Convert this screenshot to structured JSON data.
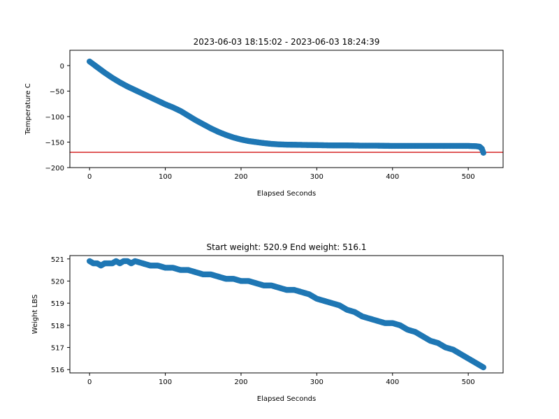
{
  "figure": {
    "background": "#ffffff"
  },
  "chart_data": [
    {
      "type": "scatter",
      "title": "2023-06-03 18:15:02 - 2023-06-03 18:24:39",
      "xlabel": "Elapsed Seconds",
      "ylabel": "Temperature C",
      "xlim": [
        -26,
        546
      ],
      "ylim": [
        -200,
        30
      ],
      "xticks": [
        0,
        100,
        200,
        300,
        400,
        500
      ],
      "xtick_labels": [
        "0",
        "100",
        "200",
        "300",
        "400",
        "500"
      ],
      "yticks": [
        -200,
        -150,
        -100,
        -50,
        0
      ],
      "ytick_labels": [
        "−200",
        "−150",
        "−100",
        "−50",
        "0"
      ],
      "grid": false,
      "marker_color": "#1f77b4",
      "reference_line": {
        "orientation": "horizontal",
        "y": -170,
        "color": "#d62728"
      },
      "series": [
        {
          "x": [
            0,
            10,
            20,
            30,
            40,
            50,
            60,
            70,
            80,
            90,
            100,
            110,
            120,
            130,
            140,
            150,
            160,
            170,
            180,
            190,
            200,
            210,
            220,
            230,
            240,
            250,
            260,
            280,
            300,
            320,
            340,
            360,
            380,
            400,
            420,
            440,
            460,
            480,
            500,
            510,
            515,
            518,
            520
          ],
          "y": [
            8,
            -3,
            -14,
            -24,
            -33,
            -41,
            -48,
            -55,
            -62,
            -69,
            -76,
            -82,
            -89,
            -98,
            -107,
            -115,
            -123,
            -130,
            -136,
            -141,
            -145,
            -148,
            -150,
            -152,
            -153.5,
            -154.5,
            -155,
            -155.5,
            -156,
            -156.5,
            -156.5,
            -157,
            -157,
            -157.5,
            -157.5,
            -157.5,
            -157.5,
            -157.5,
            -157.5,
            -158,
            -159,
            -163,
            -171
          ]
        }
      ]
    },
    {
      "type": "scatter",
      "title": "Start weight: 520.9 End weight: 516.1",
      "xlabel": "Elapsed Seconds",
      "ylabel": "Weight LBS",
      "xlim": [
        -26,
        546
      ],
      "ylim": [
        515.85,
        521.15
      ],
      "xticks": [
        0,
        100,
        200,
        300,
        400,
        500
      ],
      "xtick_labels": [
        "0",
        "100",
        "200",
        "300",
        "400",
        "500"
      ],
      "yticks": [
        516,
        517,
        518,
        519,
        520,
        521
      ],
      "ytick_labels": [
        "516",
        "517",
        "518",
        "519",
        "520",
        "521"
      ],
      "grid": false,
      "marker_color": "#1f77b4",
      "series": [
        {
          "x": [
            0,
            5,
            10,
            15,
            20,
            25,
            30,
            35,
            40,
            45,
            50,
            55,
            60,
            70,
            80,
            90,
            100,
            110,
            120,
            130,
            140,
            150,
            160,
            170,
            180,
            190,
            200,
            210,
            220,
            230,
            240,
            250,
            260,
            270,
            280,
            290,
            300,
            310,
            320,
            330,
            340,
            350,
            360,
            370,
            380,
            390,
            400,
            410,
            420,
            430,
            440,
            450,
            460,
            470,
            480,
            490,
            500,
            510,
            515,
            520
          ],
          "y": [
            520.9,
            520.8,
            520.8,
            520.7,
            520.8,
            520.8,
            520.8,
            520.9,
            520.8,
            520.9,
            520.9,
            520.8,
            520.9,
            520.8,
            520.7,
            520.7,
            520.6,
            520.6,
            520.5,
            520.5,
            520.4,
            520.3,
            520.3,
            520.2,
            520.1,
            520.1,
            520.0,
            520.0,
            519.9,
            519.8,
            519.8,
            519.7,
            519.6,
            519.6,
            519.5,
            519.4,
            519.2,
            519.1,
            519.0,
            518.9,
            518.7,
            518.6,
            518.4,
            518.3,
            518.2,
            518.1,
            518.1,
            518.0,
            517.8,
            517.7,
            517.5,
            517.3,
            517.2,
            517.0,
            516.9,
            516.7,
            516.5,
            516.3,
            516.2,
            516.1
          ]
        }
      ]
    }
  ]
}
